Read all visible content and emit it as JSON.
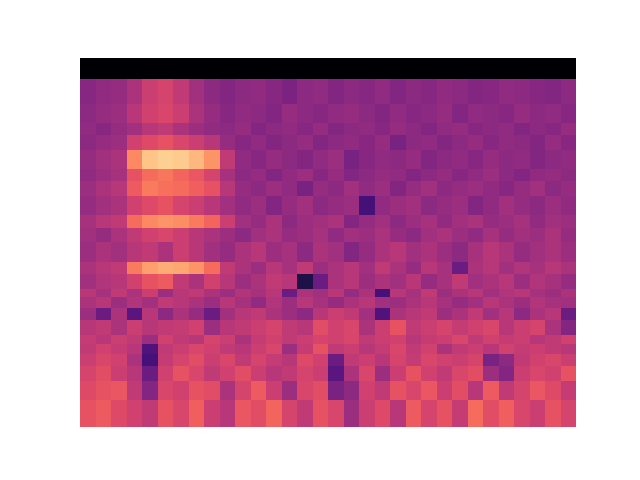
{
  "chart_data": {
    "type": "heatmap",
    "color": "magma",
    "log": "y",
    "tick_labels": false,
    "xlim": [
      0,
      32
    ],
    "ylim": [
      86,
      22050
    ],
    "y_bins": [
      86,
      129,
      172,
      215,
      258,
      301,
      344,
      430,
      517,
      603,
      689,
      861,
      1033,
      1378,
      1723,
      2067,
      2756,
      3445,
      4134,
      5512,
      6890,
      8269,
      11025,
      16000,
      22050
    ],
    "color_range": [
      -80,
      0
    ],
    "cells": [
      [
        -30,
        -28,
        -32,
        -35,
        -38,
        -30,
        -33,
        -27,
        -36,
        -40,
        -29,
        -31,
        -26,
        -34,
        -38,
        -30,
        -33,
        -45,
        -36,
        -32,
        -40,
        -28,
        -34,
        -30,
        -37,
        -25,
        -31,
        -27,
        -33,
        -36,
        -30,
        -34
      ],
      [
        -32,
        -30,
        -29,
        -38,
        -50,
        -33,
        -35,
        -30,
        -31,
        -42,
        -34,
        -28,
        -36,
        -45,
        -33,
        -31,
        -52,
        -48,
        -35,
        -38,
        -30,
        -33,
        -29,
        -36,
        -31,
        -40,
        -28,
        -38,
        -34,
        -29,
        -32,
        -37
      ],
      [
        -34,
        -31,
        -36,
        -40,
        -55,
        -35,
        -30,
        -33,
        -38,
        -35,
        -31,
        -36,
        -40,
        -38,
        -34,
        -36,
        -58,
        -42,
        -33,
        -45,
        -36,
        -30,
        -35,
        -38,
        -33,
        -31,
        -45,
        -50,
        -36,
        -33,
        -35,
        -30
      ],
      [
        -36,
        -33,
        -35,
        -42,
        -62,
        -37,
        -34,
        -31,
        -36,
        -33,
        -38,
        -34,
        -37,
        -40,
        -32,
        -35,
        -55,
        -38,
        -36,
        -40,
        -34,
        -37,
        -33,
        -35,
        -36,
        -34,
        -52,
        -48,
        -38,
        -35,
        -33,
        -36
      ],
      [
        -38,
        -35,
        -37,
        -40,
        -60,
        -38,
        -36,
        -33,
        -35,
        -38,
        -40,
        -36,
        -33,
        -45,
        -37,
        -30,
        -38,
        -36,
        -40,
        -37,
        -33,
        -38,
        -35,
        -42,
        -38,
        -36,
        -40,
        -35,
        -37,
        -36,
        -38,
        -40
      ],
      [
        -37,
        -40,
        -36,
        -38,
        -45,
        -35,
        -38,
        -40,
        -34,
        -36,
        -42,
        -37,
        -35,
        -38,
        -36,
        -34,
        -35,
        -33,
        -38,
        -36,
        -35,
        -40,
        -37,
        -36,
        -33,
        -38,
        -35,
        -37,
        -36,
        -40,
        -38,
        -35
      ],
      [
        -40,
        -38,
        -42,
        -36,
        -40,
        -38,
        -37,
        -35,
        -45,
        -40,
        -38,
        -36,
        -34,
        -38,
        -40,
        -31,
        -35,
        -33,
        -42,
        -36,
        -30,
        -38,
        -36,
        -34,
        -37,
        -35,
        -33,
        -40,
        -36,
        -34,
        -42,
        -50
      ],
      [
        -45,
        -55,
        -42,
        -58,
        -40,
        -48,
        -42,
        -46,
        -55,
        -44,
        -40,
        -38,
        -42,
        -45,
        -48,
        -40,
        -36,
        -38,
        -44,
        -60,
        -42,
        -40,
        -38,
        -45,
        -42,
        -38,
        -44,
        -40,
        -48,
        -42,
        -40,
        -55
      ],
      [
        -42,
        -40,
        -45,
        -41,
        -44,
        -38,
        -40,
        -42,
        -45,
        -40,
        -43,
        -47,
        -41,
        -45,
        -40,
        -43,
        -46,
        -42,
        -40,
        -44,
        -45,
        -42,
        -40,
        -43,
        -46,
        -44,
        -40,
        -42,
        -45,
        -41,
        -43,
        -44
      ],
      [
        -40,
        -43,
        -38,
        -42,
        -36,
        -45,
        -40,
        -38,
        -42,
        -45,
        -41,
        -43,
        -40,
        -55,
        -42,
        -44,
        -40,
        -46,
        -42,
        -62,
        -40,
        -43,
        -38,
        -45,
        -42,
        -40,
        -44,
        -41,
        -40,
        -43,
        -45,
        -42
      ],
      [
        -44,
        -41,
        -40,
        -35,
        -30,
        -28,
        -38,
        -42,
        -35,
        -40,
        -45,
        -42,
        -38,
        -40,
        -70,
        -55,
        -42,
        -40,
        -45,
        -42,
        -44,
        -40,
        -46,
        -43,
        -38,
        -44,
        -42,
        -40,
        -45,
        -41,
        -43,
        -46
      ],
      [
        -42,
        -40,
        -38,
        -22,
        -16,
        -14,
        -15,
        -18,
        -25,
        -38,
        -42,
        -45,
        -40,
        -43,
        -38,
        -45,
        -42,
        -40,
        -44,
        -38,
        -42,
        -46,
        -40,
        -43,
        -55,
        -42,
        -40,
        -44,
        -41,
        -43,
        -40,
        -42
      ],
      [
        -45,
        -42,
        -44,
        -40,
        -38,
        -42,
        -36,
        -40,
        -44,
        -46,
        -42,
        -40,
        -45,
        -43,
        -48,
        -42,
        -44,
        -50,
        -46,
        -42,
        -40,
        -44,
        -42,
        -45,
        -48,
        -43,
        -40,
        -42,
        -46,
        -44,
        -42,
        -45
      ],
      [
        -44,
        -46,
        -42,
        -38,
        -35,
        -33,
        -36,
        -40,
        -42,
        -45,
        -48,
        -44,
        -42,
        -46,
        -45,
        -43,
        -47,
        -44,
        -45,
        -42,
        -46,
        -48,
        -44,
        -42,
        -45,
        -47,
        -43,
        -46,
        -44,
        -45,
        -42,
        -46
      ],
      [
        -43,
        -40,
        -38,
        -25,
        -20,
        -18,
        -19,
        -22,
        -26,
        -36,
        -44,
        -46,
        -42,
        -48,
        -45,
        -44,
        -42,
        -50,
        -46,
        -44,
        -48,
        -45,
        -43,
        -47,
        -44,
        -42,
        -46,
        -45,
        -43,
        -47,
        -44,
        -45
      ],
      [
        -46,
        -44,
        -42,
        -35,
        -32,
        -30,
        -34,
        -36,
        -40,
        -44,
        -47,
        -45,
        -50,
        -46,
        -44,
        -48,
        -46,
        -45,
        -62,
        -47,
        -45,
        -44,
        -48,
        -46,
        -45,
        -50,
        -47,
        -44,
        -46,
        -48,
        -45,
        -47
      ],
      [
        -45,
        -42,
        -40,
        -28,
        -22,
        -24,
        -25,
        -27,
        -30,
        -40,
        -46,
        -48,
        -45,
        -47,
        -52,
        -46,
        -48,
        -44,
        -47,
        -45,
        -50,
        -46,
        -44,
        -48,
        -46,
        -45,
        -47,
        -49,
        -46,
        -44,
        -48,
        -46
      ],
      [
        -47,
        -45,
        -43,
        -30,
        -25,
        -23,
        -26,
        -29,
        -34,
        -43,
        -48,
        -46,
        -50,
        -47,
        -45,
        -49,
        -46,
        -50,
        -48,
        -46,
        -47,
        -50,
        -48,
        -46,
        -49,
        -47,
        -45,
        -48,
        -50,
        -47,
        -46,
        -48
      ],
      [
        -46,
        -44,
        -42,
        -20,
        -10,
        -8,
        -9,
        -12,
        -18,
        -38,
        -47,
        -49,
        -46,
        -48,
        -50,
        -47,
        -45,
        -52,
        -49,
        -47,
        -48,
        -46,
        -50,
        -48,
        -47,
        -49,
        -46,
        -48,
        -47,
        -50,
        -48,
        -47
      ],
      [
        -48,
        -46,
        -45,
        -35,
        -32,
        -30,
        -33,
        -36,
        -40,
        -46,
        -49,
        -47,
        -50,
        -48,
        -46,
        -50,
        -48,
        -47,
        -49,
        -46,
        -52,
        -48,
        -47,
        -50,
        -48,
        -46,
        -49,
        -47,
        -48,
        -50,
        -46,
        -49
      ],
      [
        -47,
        -49,
        -46,
        -44,
        -40,
        -38,
        -42,
        -45,
        -47,
        -48,
        -46,
        -50,
        -48,
        -47,
        -49,
        -46,
        -50,
        -48,
        -47,
        -49,
        -46,
        -48,
        -50,
        -47,
        -46,
        -49,
        -48,
        -47,
        -50,
        -48,
        -49,
        -46
      ],
      [
        -48,
        -46,
        -45,
        -40,
        -35,
        -33,
        -36,
        -42,
        -46,
        -49,
        -47,
        -48,
        -50,
        -46,
        -48,
        -49,
        -47,
        -46,
        -48,
        -50,
        -47,
        -49,
        -48,
        -46,
        -50,
        -47,
        -48,
        -49,
        -46,
        -48,
        -47,
        -49
      ],
      [
        -49,
        -47,
        -46,
        -42,
        -36,
        -34,
        -38,
        -44,
        -48,
        -50,
        -48,
        -47,
        -49,
        -51,
        -48,
        -47,
        -50,
        -48,
        -49,
        -47,
        -50,
        -48,
        -49,
        -47,
        -48,
        -50,
        -49,
        -47,
        -48,
        -49,
        -50,
        -48
      ],
      [
        -80,
        -80,
        -80,
        -80,
        -80,
        -80,
        -80,
        -80,
        -80,
        -80,
        -80,
        -80,
        -80,
        -80,
        -80,
        -80,
        -80,
        -80,
        -80,
        -80,
        -80,
        -80,
        -80,
        -80,
        -80,
        -80,
        -80,
        -80,
        -80,
        -80,
        -80,
        -80
      ]
    ]
  }
}
